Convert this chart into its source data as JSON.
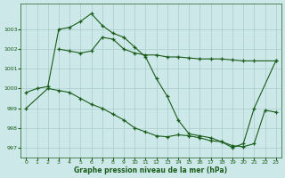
{
  "line1_x": [
    0,
    1,
    2,
    3,
    4,
    5,
    6,
    7,
    8,
    9,
    10,
    11,
    12,
    13,
    14,
    15,
    16,
    17,
    18,
    19,
    20,
    21,
    23
  ],
  "line1_y": [
    999.8,
    1000.0,
    1000.1,
    1003.0,
    1003.1,
    1003.4,
    1003.8,
    1003.2,
    1002.8,
    1002.6,
    1002.1,
    1001.6,
    1000.5,
    999.6,
    998.4,
    997.7,
    997.6,
    997.5,
    997.3,
    997.0,
    997.2,
    999.0,
    1001.4
  ],
  "line2_x": [
    3,
    4,
    5,
    6,
    7,
    8,
    9,
    10,
    11,
    12,
    13,
    14,
    15,
    16,
    17,
    18,
    19,
    20,
    21,
    23
  ],
  "line2_y": [
    1002.0,
    1001.9,
    1001.8,
    1001.9,
    1002.6,
    1002.5,
    1002.0,
    1001.8,
    1001.7,
    1001.7,
    1001.6,
    1001.6,
    1001.55,
    1001.5,
    1001.5,
    1001.5,
    1001.45,
    1001.4,
    1001.4,
    1001.4
  ],
  "line3_x": [
    0,
    2,
    3,
    4,
    5,
    6,
    7,
    8,
    9,
    10,
    11,
    12,
    13,
    14,
    15,
    16,
    17,
    18,
    19,
    20,
    21,
    22,
    23
  ],
  "line3_y": [
    999.0,
    1000.0,
    999.9,
    999.8,
    999.5,
    999.2,
    999.0,
    998.7,
    998.4,
    998.0,
    997.8,
    997.6,
    997.55,
    997.65,
    997.6,
    997.5,
    997.35,
    997.3,
    997.1,
    997.05,
    997.2,
    998.9,
    998.8
  ],
  "bg_color": "#cce8e8",
  "grid_color": "#aacccc",
  "line_color": "#1a5c1a",
  "xlabel": "Graphe pression niveau de la mer (hPa)",
  "ylim": [
    996.5,
    1004.3
  ],
  "xlim": [
    -0.5,
    23.5
  ],
  "yticks": [
    997,
    998,
    999,
    1000,
    1001,
    1002,
    1003
  ],
  "xticks": [
    0,
    1,
    2,
    3,
    4,
    5,
    6,
    7,
    8,
    9,
    10,
    11,
    12,
    13,
    14,
    15,
    16,
    17,
    18,
    19,
    20,
    21,
    22,
    23
  ]
}
